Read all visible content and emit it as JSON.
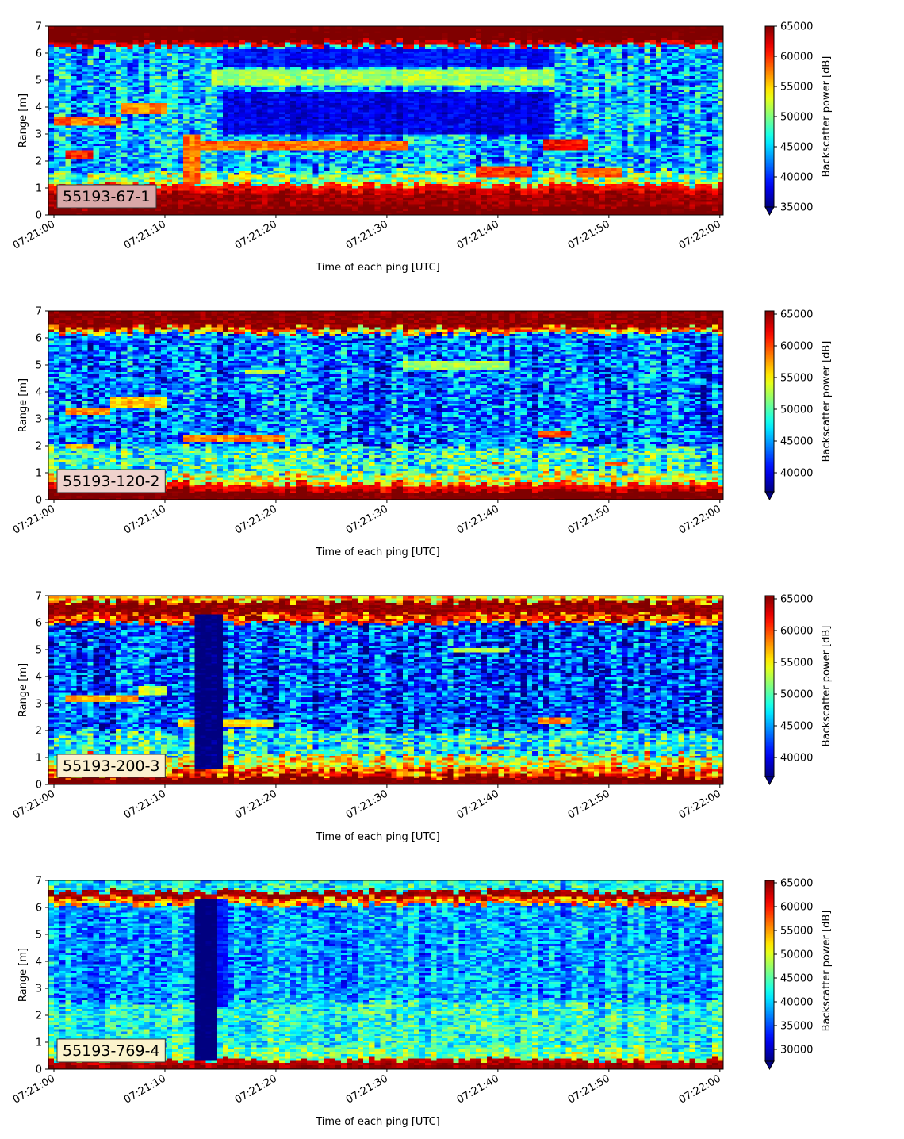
{
  "chart_data": [
    {
      "type": "heatmap",
      "label": "55193-67-1",
      "xlabel": "Time of each ping [UTC]",
      "ylabel": "Range [m]",
      "x_ticks": [
        "07:21:00",
        "07:21:10",
        "07:21:20",
        "07:21:30",
        "07:21:40",
        "07:21:50",
        "07:22:00"
      ],
      "x_range": [
        "07:21:00",
        "07:22:00"
      ],
      "y_ticks": [
        0,
        1,
        2,
        3,
        4,
        5,
        6,
        7
      ],
      "ylim": [
        0,
        7
      ],
      "colorbar_label": "Backscatter power [dB]",
      "colorbar_ticks": [
        35000,
        40000,
        45000,
        50000,
        55000,
        60000,
        65000
      ],
      "colorbar_range": [
        35000,
        65000
      ],
      "colormap": "jet",
      "colorbar_extend": "min",
      "label_box_color": "#d9a8a8",
      "background_level": 44000,
      "bands": [
        {
          "from": 0,
          "to": 0.3,
          "value": 66000
        },
        {
          "from": 0.3,
          "to": 0.9,
          "value": 64000
        },
        {
          "from": 0.9,
          "to": 1.15,
          "value": 61000
        },
        {
          "from": 1.15,
          "to": 1.6,
          "value": 50000
        },
        {
          "from": 6.3,
          "to": 6.45,
          "value": 62000
        },
        {
          "from": 6.45,
          "to": 7,
          "value": 66000
        }
      ],
      "features": [
        {
          "t0": 0,
          "t1": 6,
          "y0": 3.3,
          "y1": 3.65,
          "value": 58000
        },
        {
          "t0": 6,
          "t1": 10,
          "y0": 3.75,
          "y1": 4.15,
          "value": 57000
        },
        {
          "t0": 1,
          "t1": 3.5,
          "y0": 2.1,
          "y1": 2.4,
          "value": 61000
        },
        {
          "t0": 11.5,
          "t1": 13,
          "y0": 1.2,
          "y1": 3.0,
          "value": 58000
        },
        {
          "t0": 13,
          "t1": 32,
          "y0": 2.45,
          "y1": 2.75,
          "value": 58000
        },
        {
          "t0": 38,
          "t1": 43,
          "y0": 1.45,
          "y1": 1.8,
          "value": 60000
        },
        {
          "t0": 44,
          "t1": 48,
          "y0": 2.45,
          "y1": 2.8,
          "value": 61000
        },
        {
          "t0": 47,
          "t1": 51,
          "y0": 1.45,
          "y1": 1.75,
          "value": 58000
        },
        {
          "t0": 14,
          "t1": 45,
          "y0": 4.85,
          "y1": 5.45,
          "value": 51000
        },
        {
          "t0": 15,
          "t1": 45,
          "y0": 3.0,
          "y1": 4.6,
          "value": 38000
        },
        {
          "t0": 15,
          "t1": 45,
          "y0": 5.5,
          "y1": 6.2,
          "value": 39000
        }
      ]
    },
    {
      "type": "heatmap",
      "label": "55193-120-2",
      "xlabel": "Time of each ping [UTC]",
      "ylabel": "Range [m]",
      "x_ticks": [
        "07:21:00",
        "07:21:10",
        "07:21:20",
        "07:21:30",
        "07:21:40",
        "07:21:50",
        "07:22:00"
      ],
      "x_range": [
        "07:21:00",
        "07:22:00"
      ],
      "y_ticks": [
        0,
        1,
        2,
        3,
        4,
        5,
        6,
        7
      ],
      "ylim": [
        0,
        7
      ],
      "colorbar_label": "Backscatter power [dB]",
      "colorbar_ticks": [
        40000,
        45000,
        50000,
        55000,
        60000,
        65000
      ],
      "colorbar_range": [
        37000,
        65500
      ],
      "colormap": "jet",
      "colorbar_extend": "min",
      "label_box_color": "#efd2cc",
      "background_level": 43500,
      "bands": [
        {
          "from": 0,
          "to": 0.35,
          "value": 66000
        },
        {
          "from": 0.35,
          "to": 0.6,
          "value": 62000
        },
        {
          "from": 0.6,
          "to": 1.0,
          "value": 53000
        },
        {
          "from": 1.0,
          "to": 2.0,
          "value": 48500
        },
        {
          "from": 6.2,
          "to": 6.4,
          "value": 57000
        },
        {
          "from": 6.4,
          "to": 7,
          "value": 65000
        }
      ],
      "features": [
        {
          "t0": 1,
          "t1": 5,
          "y0": 3.15,
          "y1": 3.4,
          "value": 58000
        },
        {
          "t0": 5,
          "t1": 10,
          "y0": 3.4,
          "y1": 3.85,
          "value": 56000
        },
        {
          "t0": 1,
          "t1": 3.5,
          "y0": 1.9,
          "y1": 2.1,
          "value": 57000
        },
        {
          "t0": 11.5,
          "t1": 21,
          "y0": 2.2,
          "y1": 2.45,
          "value": 58000
        },
        {
          "t0": 17,
          "t1": 21,
          "y0": 4.65,
          "y1": 4.85,
          "value": 53000
        },
        {
          "t0": 31.5,
          "t1": 41,
          "y0": 4.85,
          "y1": 5.15,
          "value": 52000
        },
        {
          "t0": 43.5,
          "t1": 46.5,
          "y0": 2.3,
          "y1": 2.6,
          "value": 60000
        },
        {
          "t0": 39.5,
          "t1": 40.5,
          "y0": 1.3,
          "y1": 1.45,
          "value": 60000
        },
        {
          "t0": 49.5,
          "t1": 51.5,
          "y0": 1.25,
          "y1": 1.45,
          "value": 59000
        }
      ]
    },
    {
      "type": "heatmap",
      "label": "55193-200-3",
      "xlabel": "Time of each ping [UTC]",
      "ylabel": "Range [m]",
      "x_ticks": [
        "07:21:00",
        "07:21:10",
        "07:21:20",
        "07:21:30",
        "07:21:40",
        "07:21:50",
        "07:22:00"
      ],
      "x_range": [
        "07:21:00",
        "07:22:00"
      ],
      "y_ticks": [
        0,
        1,
        2,
        3,
        4,
        5,
        6,
        7
      ],
      "ylim": [
        0,
        7
      ],
      "colorbar_label": "Backscatter power [dB]",
      "colorbar_ticks": [
        40000,
        45000,
        50000,
        55000,
        60000,
        65000
      ],
      "colorbar_range": [
        37000,
        65500
      ],
      "colormap": "jet",
      "colorbar_extend": "min",
      "label_box_color": "#fbf0d0",
      "background_level": 42500,
      "bands": [
        {
          "from": 0,
          "to": 0.3,
          "value": 66000
        },
        {
          "from": 0.3,
          "to": 0.65,
          "value": 60000
        },
        {
          "from": 0.65,
          "to": 1.1,
          "value": 54000
        },
        {
          "from": 1.1,
          "to": 2.0,
          "value": 48000
        },
        {
          "from": 6.0,
          "to": 6.35,
          "value": 60000
        },
        {
          "from": 6.35,
          "to": 6.8,
          "value": 65000
        },
        {
          "from": 6.8,
          "to": 7,
          "value": 56000
        }
      ],
      "features": [
        {
          "t0": 1,
          "t1": 7.5,
          "y0": 3.1,
          "y1": 3.35,
          "value": 57000
        },
        {
          "t0": 7.5,
          "t1": 10,
          "y0": 3.35,
          "y1": 3.7,
          "value": 53000
        },
        {
          "t0": 11,
          "t1": 20,
          "y0": 2.2,
          "y1": 2.45,
          "value": 55000
        },
        {
          "t0": 12.5,
          "t1": 15,
          "y0": 0.6,
          "y1": 6.3,
          "value": 36000
        },
        {
          "t0": 38.5,
          "t1": 40.5,
          "y0": 1.3,
          "y1": 1.45,
          "value": 61000
        },
        {
          "t0": 43.5,
          "t1": 46.5,
          "y0": 2.25,
          "y1": 2.5,
          "value": 58000
        },
        {
          "t0": 36,
          "t1": 41,
          "y0": 4.95,
          "y1": 5.1,
          "value": 53000
        }
      ]
    },
    {
      "type": "heatmap",
      "label": "55193-769-4",
      "xlabel": "Time of each ping [UTC]",
      "ylabel": "Range [m]",
      "x_ticks": [
        "07:21:00",
        "07:21:10",
        "07:21:20",
        "07:21:30",
        "07:21:40",
        "07:21:50",
        "07:22:00"
      ],
      "x_range": [
        "07:21:00",
        "07:22:00"
      ],
      "y_ticks": [
        0,
        1,
        2,
        3,
        4,
        5,
        6,
        7
      ],
      "ylim": [
        0,
        7
      ],
      "colorbar_label": "Backscatter power [dB]",
      "colorbar_ticks": [
        30000,
        35000,
        40000,
        45000,
        50000,
        55000,
        60000,
        65000
      ],
      "colorbar_range": [
        27500,
        65500
      ],
      "colormap": "jet",
      "colorbar_extend": "min",
      "label_box_color": "#fbf3cc",
      "background_level": 38000,
      "bands": [
        {
          "from": 0,
          "to": 0.15,
          "value": 65000
        },
        {
          "from": 0.15,
          "to": 0.35,
          "value": 63000
        },
        {
          "from": 0.35,
          "to": 0.8,
          "value": 46000
        },
        {
          "from": 0.8,
          "to": 2.5,
          "value": 42500
        },
        {
          "from": 6.1,
          "to": 6.35,
          "value": 55000
        },
        {
          "from": 6.35,
          "to": 6.6,
          "value": 64000
        },
        {
          "from": 6.6,
          "to": 7,
          "value": 42000
        }
      ],
      "features": [
        {
          "t0": 12.5,
          "t1": 14.5,
          "y0": 0.35,
          "y1": 6.3,
          "value": 27000
        },
        {
          "t0": 14.5,
          "t1": 15.5,
          "y0": 2.3,
          "y1": 6.3,
          "value": 33000
        }
      ]
    }
  ]
}
